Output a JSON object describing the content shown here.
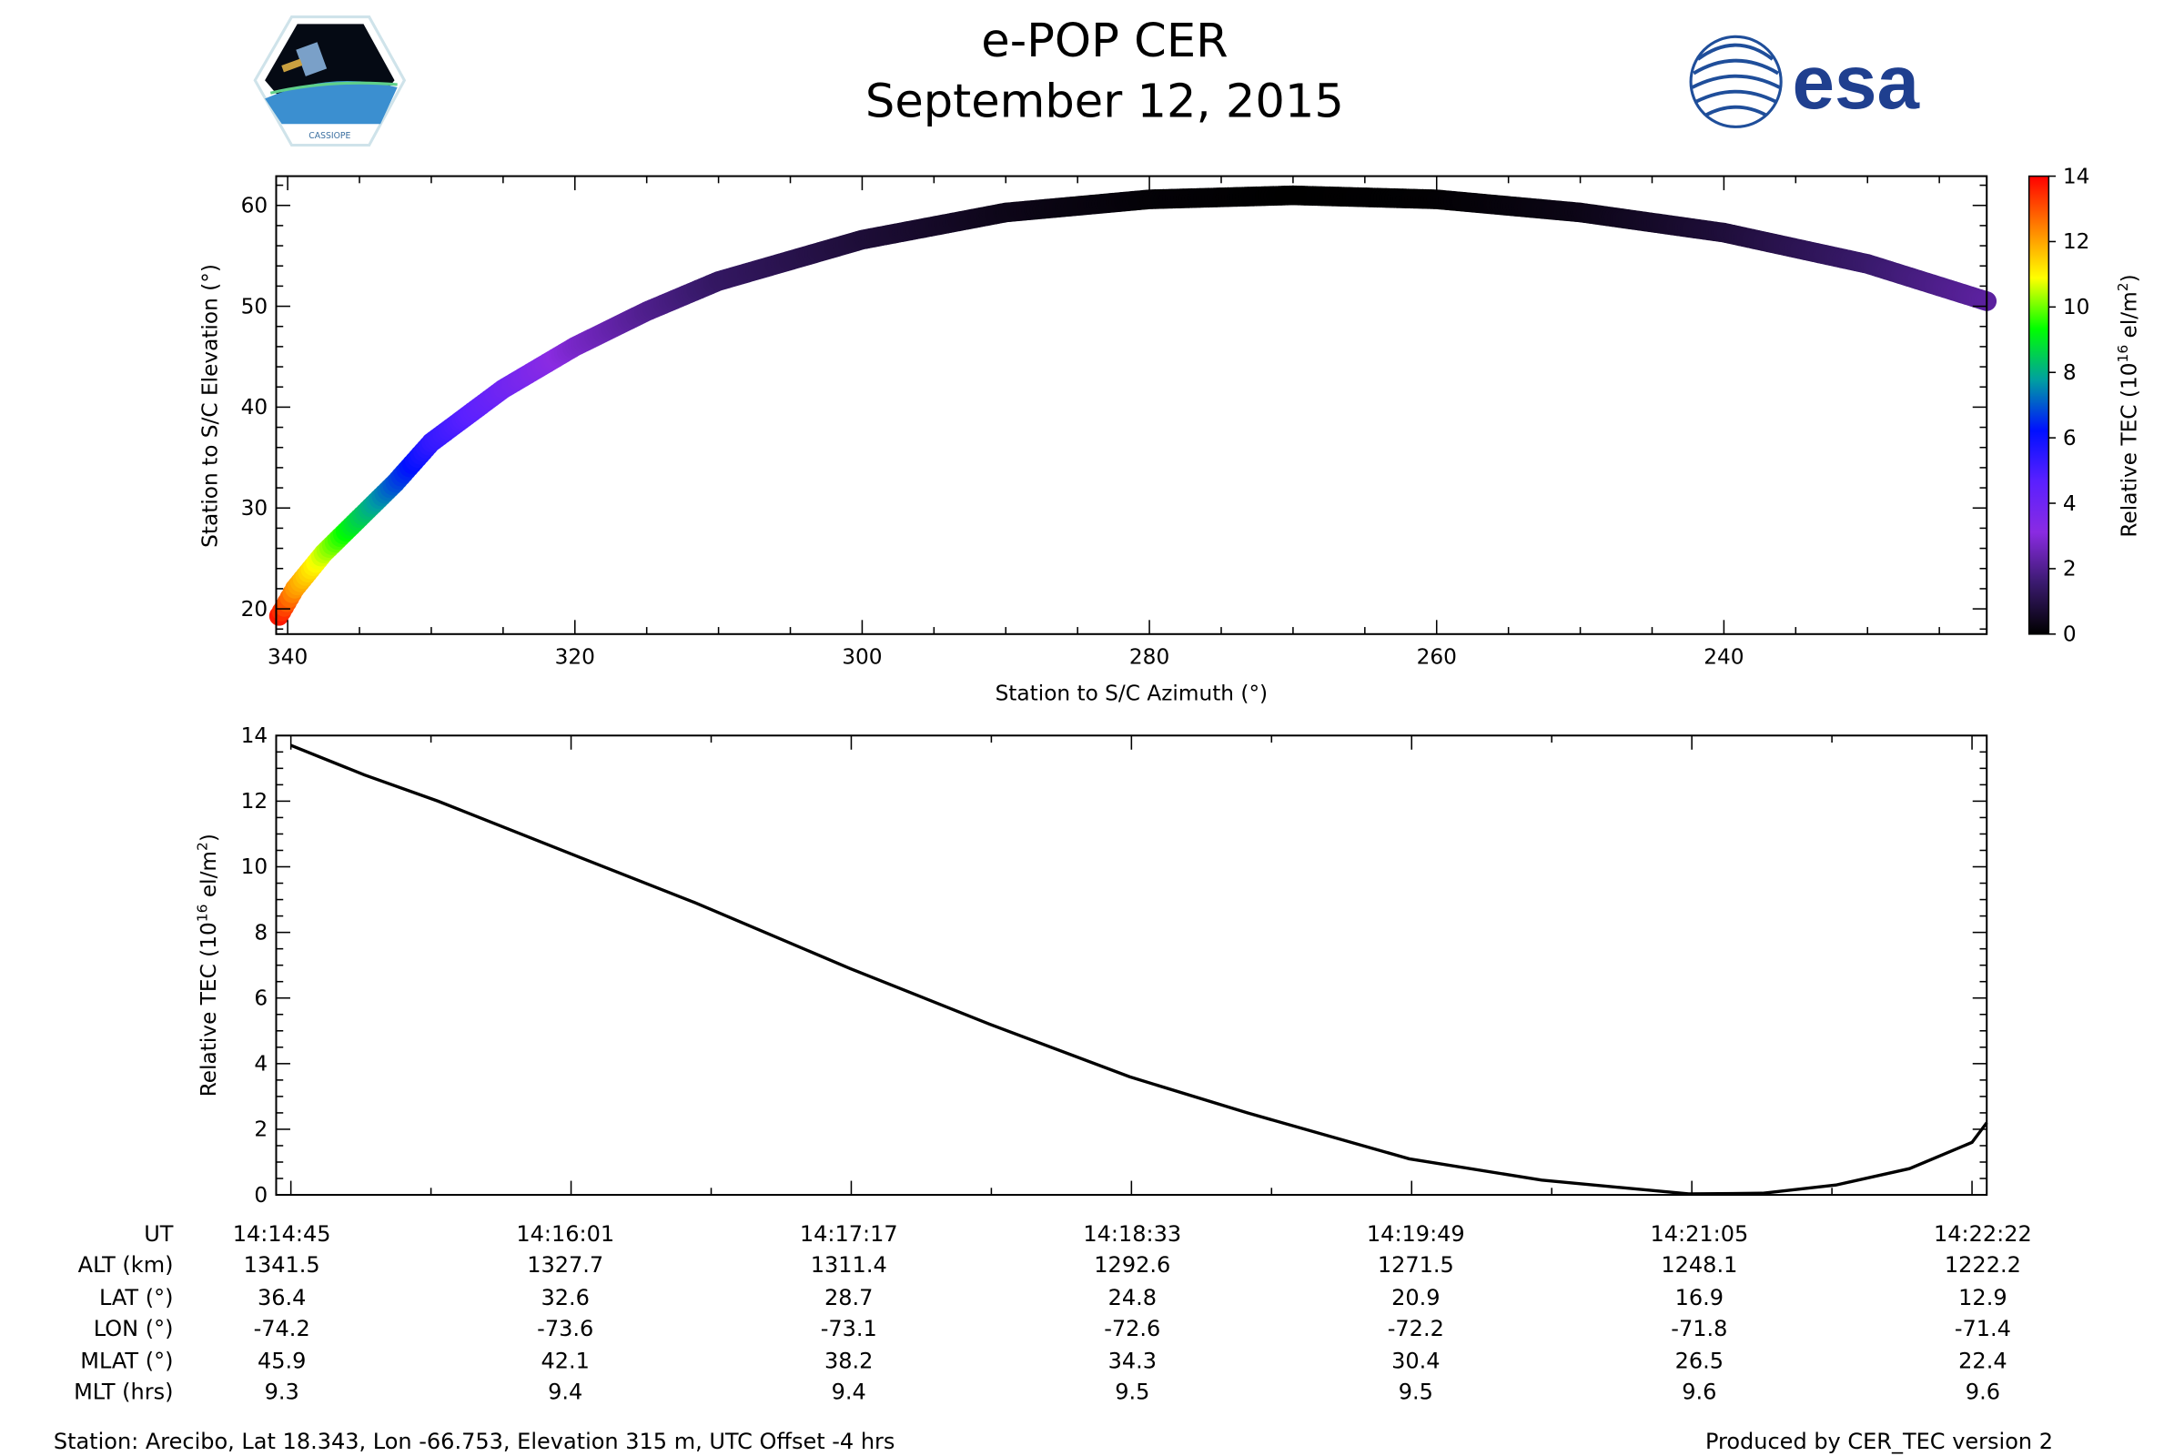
{
  "header": {
    "title": "e-POP CER",
    "date": "September 12, 2015",
    "left_logo_text": "CASSIOPE",
    "right_logo_text": "esa"
  },
  "chart_data": [
    {
      "type": "scatter",
      "title": "",
      "xlabel": "Station to S/C Azimuth (°)",
      "ylabel": "Station to S/C Elevation (°)",
      "xlim": [
        340.8,
        221.7
      ],
      "ylim": [
        17.5,
        62.9
      ],
      "xticks": [
        340,
        320,
        300,
        280,
        260,
        240
      ],
      "yticks": [
        20,
        30,
        40,
        50,
        60
      ],
      "color_by": "Relative TEC",
      "points": [
        {
          "az": 340.6,
          "el": 19.3,
          "tec": 13.7
        },
        {
          "az": 339.5,
          "el": 22.0,
          "tec": 12.2
        },
        {
          "az": 337.5,
          "el": 25.5,
          "tec": 10.5
        },
        {
          "az": 335.0,
          "el": 29.0,
          "tec": 8.6
        },
        {
          "az": 332.5,
          "el": 32.5,
          "tec": 6.9
        },
        {
          "az": 330.0,
          "el": 36.5,
          "tec": 5.4
        },
        {
          "az": 325.0,
          "el": 41.8,
          "tec": 4.0
        },
        {
          "az": 320.0,
          "el": 46.0,
          "tec": 2.8
        },
        {
          "az": 315.0,
          "el": 49.5,
          "tec": 2.0
        },
        {
          "az": 310.0,
          "el": 52.5,
          "tec": 1.4
        },
        {
          "az": 300.0,
          "el": 56.6,
          "tec": 0.8
        },
        {
          "az": 290.0,
          "el": 59.3,
          "tec": 0.35
        },
        {
          "az": 280.0,
          "el": 60.6,
          "tec": 0.1
        },
        {
          "az": 270.0,
          "el": 61.0,
          "tec": 0.0
        },
        {
          "az": 260.0,
          "el": 60.6,
          "tec": 0.05
        },
        {
          "az": 250.0,
          "el": 59.3,
          "tec": 0.3
        },
        {
          "az": 240.0,
          "el": 57.3,
          "tec": 0.8
        },
        {
          "az": 230.0,
          "el": 54.2,
          "tec": 1.5
        },
        {
          "az": 221.7,
          "el": 50.5,
          "tec": 2.2
        }
      ],
      "colorbar": {
        "label": "Relative TEC (10",
        "label_exp": "16",
        "label_unit": " el/m",
        "label_unit_exp": "2",
        "label_close": ")",
        "range": [
          0,
          14
        ],
        "ticks": [
          0,
          2,
          4,
          6,
          8,
          10,
          12,
          14
        ],
        "colors": [
          "#000000",
          "#3a1a6e",
          "#8a2be2",
          "#5a20ff",
          "#0010ff",
          "#00a0a0",
          "#00ff00",
          "#ffff00",
          "#ff8000",
          "#ff0000"
        ]
      }
    },
    {
      "type": "line",
      "xlabel": "",
      "ylabel": "Relative TEC (10",
      "ylabel_exp": "16",
      "ylabel_unit": " el/m",
      "ylabel_unit_exp": "2",
      "ylabel_close": ")",
      "ylim": [
        0,
        14
      ],
      "yticks": [
        0,
        2,
        4,
        6,
        8,
        10,
        12,
        14
      ],
      "x_seconds_range": [
        -4,
        461
      ],
      "series": [
        {
          "name": "Relative TEC",
          "color": "#000000",
          "t_seconds": [
            0,
            20,
            40,
            76,
            110,
            152,
            190,
            228,
            260,
            304,
            340,
            380,
            400,
            420,
            440,
            457,
            465
          ],
          "values": [
            13.7,
            12.8,
            12.0,
            10.4,
            8.9,
            6.9,
            5.2,
            3.6,
            2.5,
            1.1,
            0.45,
            0.03,
            0.05,
            0.3,
            0.8,
            1.6,
            2.2
          ]
        }
      ]
    }
  ],
  "table": {
    "row_labels": [
      "UT",
      "ALT (km)",
      "LAT (°)",
      "LON (°)",
      "MLAT (°)",
      "MLT (hrs)"
    ],
    "columns": [
      [
        "14:14:45",
        "1341.5",
        "36.4",
        "-74.2",
        "45.9",
        "9.3"
      ],
      [
        "14:16:01",
        "1327.7",
        "32.6",
        "-73.6",
        "42.1",
        "9.4"
      ],
      [
        "14:17:17",
        "1311.4",
        "28.7",
        "-73.1",
        "38.2",
        "9.4"
      ],
      [
        "14:18:33",
        "1292.6",
        "24.8",
        "-72.6",
        "34.3",
        "9.5"
      ],
      [
        "14:19:49",
        "1271.5",
        "20.9",
        "-72.2",
        "30.4",
        "9.5"
      ],
      [
        "14:21:05",
        "1248.1",
        "16.9",
        "-71.8",
        "26.5",
        "9.6"
      ],
      [
        "14:22:22",
        "1222.2",
        "12.9",
        "-71.4",
        "22.4",
        "9.6"
      ]
    ]
  },
  "footer": {
    "station": "Station: Arecibo, Lat 18.343, Lon -66.753, Elevation 315 m, UTC Offset -4 hrs",
    "produced": "Produced by CER_TEC version 2"
  }
}
